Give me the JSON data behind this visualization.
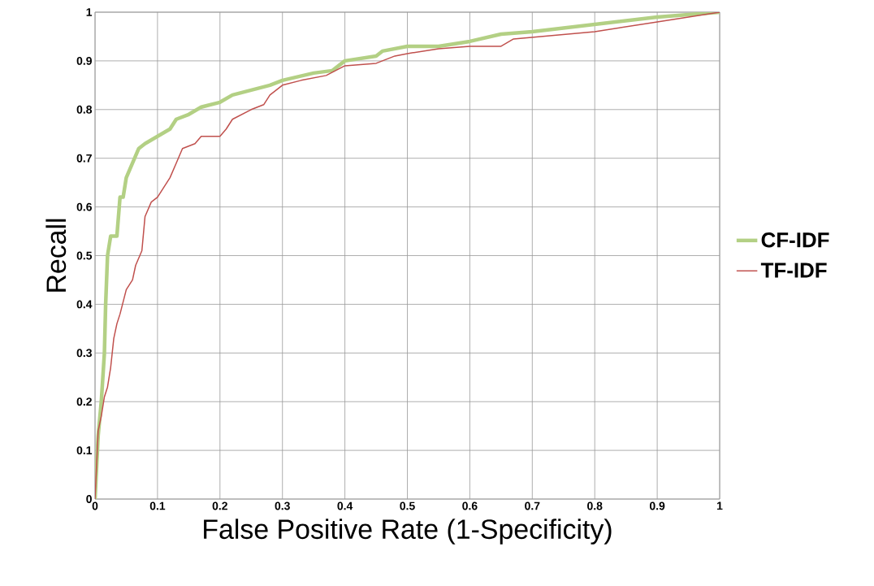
{
  "chart_data": {
    "type": "line",
    "xlabel": "False Positive Rate (1-Specificity)",
    "ylabel": "Recall",
    "xlim": [
      0,
      1
    ],
    "ylim": [
      0,
      1
    ],
    "xticks": [
      0,
      0.1,
      0.2,
      0.3,
      0.4,
      0.5,
      0.6,
      0.7,
      0.8,
      0.9,
      1
    ],
    "yticks": [
      0,
      0.1,
      0.2,
      0.3,
      0.4,
      0.5,
      0.6,
      0.7,
      0.8,
      0.9,
      1
    ],
    "grid": true,
    "legend": "right",
    "series": [
      {
        "name": "CF-IDF",
        "color": "#b3d084",
        "x": [
          0,
          0.005,
          0.01,
          0.015,
          0.017,
          0.02,
          0.025,
          0.035,
          0.04,
          0.045,
          0.05,
          0.06,
          0.07,
          0.08,
          0.1,
          0.12,
          0.13,
          0.15,
          0.17,
          0.2,
          0.22,
          0.25,
          0.28,
          0.3,
          0.35,
          0.38,
          0.4,
          0.45,
          0.46,
          0.5,
          0.55,
          0.6,
          0.65,
          0.7,
          0.8,
          0.9,
          1
        ],
        "values": [
          0,
          0.13,
          0.2,
          0.3,
          0.4,
          0.5,
          0.54,
          0.54,
          0.62,
          0.62,
          0.66,
          0.69,
          0.72,
          0.73,
          0.745,
          0.76,
          0.78,
          0.79,
          0.805,
          0.815,
          0.83,
          0.84,
          0.85,
          0.86,
          0.875,
          0.88,
          0.9,
          0.91,
          0.92,
          0.93,
          0.93,
          0.94,
          0.955,
          0.96,
          0.975,
          0.99,
          1
        ]
      },
      {
        "name": "TF-IDF",
        "color": "#c0504d",
        "x": [
          0,
          0.005,
          0.01,
          0.015,
          0.02,
          0.025,
          0.03,
          0.035,
          0.04,
          0.05,
          0.06,
          0.065,
          0.075,
          0.08,
          0.09,
          0.1,
          0.11,
          0.12,
          0.13,
          0.14,
          0.16,
          0.17,
          0.2,
          0.21,
          0.22,
          0.25,
          0.27,
          0.28,
          0.3,
          0.33,
          0.37,
          0.4,
          0.45,
          0.48,
          0.5,
          0.55,
          0.6,
          0.65,
          0.67,
          0.8,
          0.9,
          1
        ],
        "values": [
          0,
          0.14,
          0.17,
          0.21,
          0.23,
          0.27,
          0.33,
          0.36,
          0.38,
          0.43,
          0.45,
          0.48,
          0.51,
          0.58,
          0.61,
          0.62,
          0.64,
          0.66,
          0.69,
          0.72,
          0.73,
          0.745,
          0.745,
          0.76,
          0.78,
          0.8,
          0.81,
          0.83,
          0.85,
          0.86,
          0.87,
          0.89,
          0.895,
          0.91,
          0.915,
          0.925,
          0.93,
          0.93,
          0.945,
          0.96,
          0.98,
          1
        ]
      }
    ]
  }
}
